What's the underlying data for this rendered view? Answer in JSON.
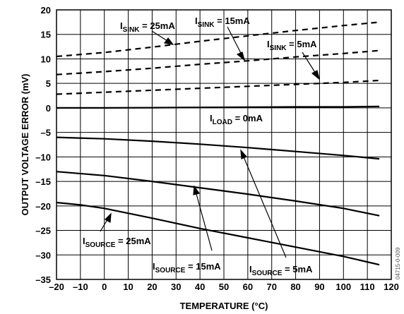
{
  "chart_data": {
    "type": "line",
    "title": "",
    "xlabel": "TEMPERATURE (°C)",
    "ylabel": "OUTPUT VOLTAGE ERROR (mV)",
    "xlim": [
      -20,
      120
    ],
    "ylim": [
      -35,
      20
    ],
    "xticks": [
      -20,
      -10,
      0,
      10,
      20,
      30,
      40,
      50,
      60,
      70,
      80,
      90,
      100,
      110,
      120
    ],
    "yticks": [
      -35,
      -30,
      -25,
      -20,
      -15,
      -10,
      -5,
      0,
      5,
      10,
      15,
      20
    ],
    "grid": true,
    "legend": "none",
    "series": [
      {
        "name": "I_SINK = 25mA",
        "style": "dashed",
        "x": [
          -20,
          0,
          20,
          40,
          60,
          80,
          100,
          115
        ],
        "y": [
          10.5,
          11.3,
          12.4,
          13.6,
          14.7,
          15.8,
          16.8,
          17.5
        ]
      },
      {
        "name": "I_SINK = 15mA",
        "style": "dashed",
        "x": [
          -20,
          0,
          20,
          40,
          60,
          80,
          100,
          115
        ],
        "y": [
          6.8,
          7.4,
          8.1,
          8.9,
          9.6,
          10.4,
          11.1,
          11.7
        ]
      },
      {
        "name": "I_SINK = 5mA",
        "style": "dashed",
        "x": [
          -20,
          0,
          20,
          40,
          60,
          80,
          100,
          115
        ],
        "y": [
          2.8,
          3.2,
          3.6,
          4.0,
          4.4,
          4.8,
          5.2,
          5.6
        ]
      },
      {
        "name": "I_LOAD = 0mA",
        "style": "solid",
        "x": [
          -20,
          0,
          20,
          40,
          60,
          80,
          100,
          115
        ],
        "y": [
          0.0,
          0.0,
          0.05,
          0.1,
          0.15,
          0.2,
          0.2,
          0.3
        ]
      },
      {
        "name": "I_SOURCE = 5mA",
        "style": "solid",
        "x": [
          -20,
          0,
          20,
          40,
          60,
          80,
          100,
          115
        ],
        "y": [
          -6.0,
          -6.3,
          -6.8,
          -7.4,
          -8.1,
          -8.9,
          -9.7,
          -10.4
        ]
      },
      {
        "name": "I_SOURCE = 15mA",
        "style": "solid",
        "x": [
          -20,
          0,
          20,
          40,
          60,
          80,
          100,
          115
        ],
        "y": [
          -13.0,
          -13.8,
          -15.0,
          -16.3,
          -17.6,
          -19.0,
          -20.5,
          -22.0
        ]
      },
      {
        "name": "I_SOURCE = 25mA",
        "style": "solid",
        "x": [
          -20,
          -10,
          0,
          20,
          40,
          60,
          80,
          100,
          115
        ],
        "y": [
          -19.3,
          -19.8,
          -20.5,
          -22.5,
          -24.6,
          -26.5,
          -28.4,
          -30.3,
          -32.0
        ]
      }
    ]
  },
  "labels": {
    "sink25": {
      "main": "I",
      "sub": "SINK",
      "rest": " = 25mA"
    },
    "sink15": {
      "main": "I",
      "sub": "SINK",
      "rest": " = 15mA"
    },
    "sink5": {
      "main": "I",
      "sub": "SINK",
      "rest": " = 5mA"
    },
    "load0": {
      "main": "I",
      "sub": "LOAD",
      "rest": " = 0mA"
    },
    "source25": {
      "main": "I",
      "sub": "SOURCE",
      "rest": " = 25mA"
    },
    "source15": {
      "main": "I",
      "sub": "SOURCE",
      "rest": " = 15mA"
    },
    "source5": {
      "main": "I",
      "sub": "SOURCE",
      "rest": " = 5mA"
    }
  },
  "figure_code": "04715-0-009"
}
